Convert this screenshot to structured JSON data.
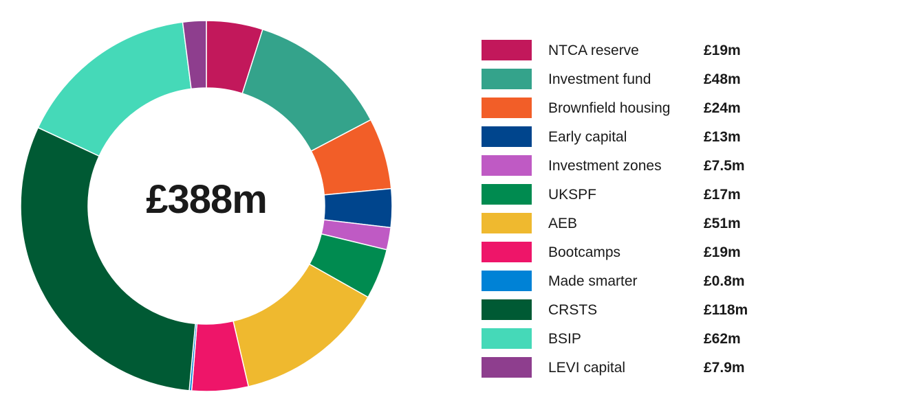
{
  "chart_data": {
    "type": "pie",
    "total_label": "£388m",
    "slices": [
      {
        "label": "NTCA reserve",
        "value": 19,
        "display": "£19m",
        "color": "#C2185B"
      },
      {
        "label": "Investment fund",
        "value": 48,
        "display": "£48m",
        "color": "#34A38B"
      },
      {
        "label": "Brownfield housing",
        "value": 24,
        "display": "£24m",
        "color": "#F25E28"
      },
      {
        "label": "Early capital",
        "value": 13,
        "display": "£13m",
        "color": "#00458D"
      },
      {
        "label": "Investment zones",
        "value": 7.5,
        "display": "£7.5m",
        "color": "#BF5AC4"
      },
      {
        "label": "UKSPF",
        "value": 17,
        "display": "£17m",
        "color": "#008B50"
      },
      {
        "label": "AEB",
        "value": 51,
        "display": "£51m",
        "color": "#EFB92F"
      },
      {
        "label": "Bootcamps",
        "value": 19,
        "display": "£19m",
        "color": "#EE1569"
      },
      {
        "label": "Made smarter",
        "value": 0.8,
        "display": "£0.8m",
        "color": "#0082D6"
      },
      {
        "label": "CRSTS",
        "value": 118,
        "display": "£118m",
        "color": "#005A34"
      },
      {
        "label": "BSIP",
        "value": 62,
        "display": "£62m",
        "color": "#45D9B8"
      },
      {
        "label": "LEVI capital",
        "value": 7.9,
        "display": "£7.9m",
        "color": "#8E3E8E"
      }
    ]
  }
}
